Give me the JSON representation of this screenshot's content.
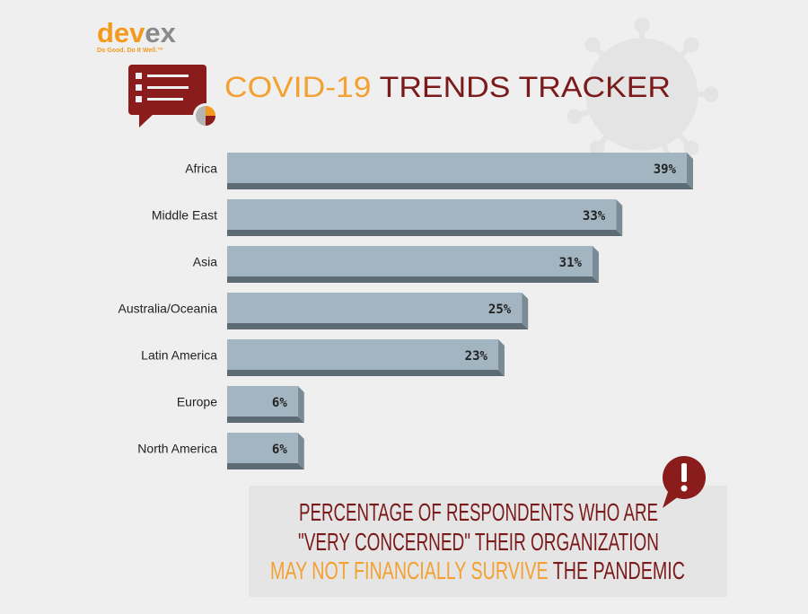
{
  "logo": {
    "brand_a": "dev",
    "brand_b": "ex",
    "tagline": "Do Good. Do It Well.™"
  },
  "chart_data": {
    "type": "bar",
    "orientation": "horizontal",
    "title": {
      "highlight": "COVID-19",
      "rest": "TRENDS TRACKER"
    },
    "categories": [
      "Africa",
      "Middle East",
      "Asia",
      "Australia/Oceania",
      "Latin America",
      "Europe",
      "North America"
    ],
    "values": [
      39,
      33,
      31,
      25,
      23,
      6,
      6
    ],
    "value_labels": [
      "39%",
      "33%",
      "31%",
      "25%",
      "23%",
      "6%",
      "6%"
    ],
    "color": "#a2b5c1"
  },
  "caption": {
    "line1": "PERCENTAGE OF RESPONDENTS WHO ARE",
    "line2": "\"VERY CONCERNED\" THEIR ORGANIZATION",
    "line3_highlight": "MAY NOT FINANCIALLY SURVIVE",
    "line3_rest": "THE PANDEMIC"
  }
}
